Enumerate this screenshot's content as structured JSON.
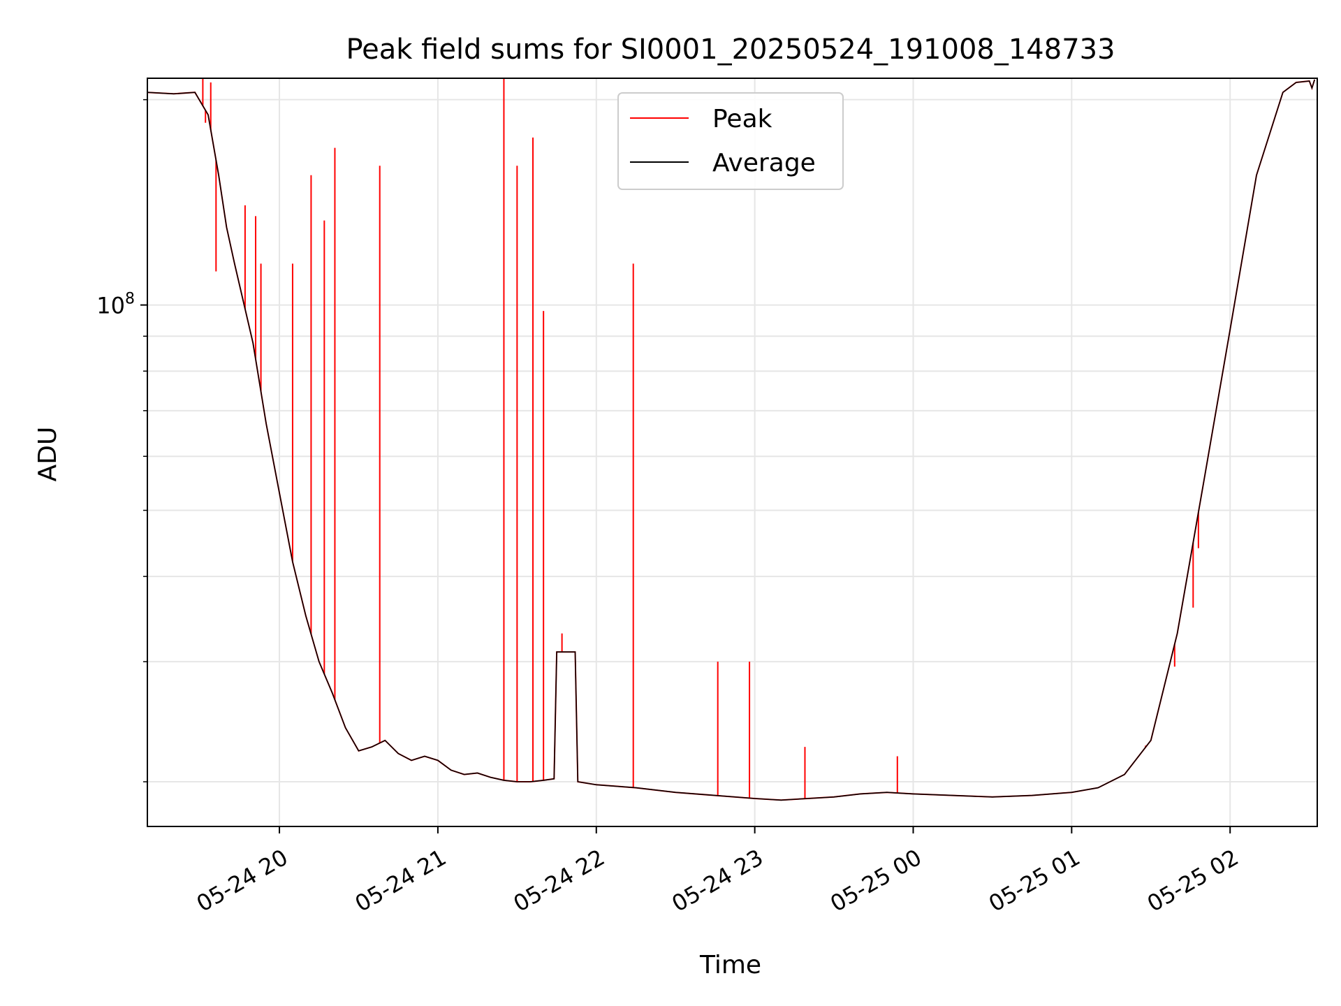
{
  "chart_data": {
    "type": "line",
    "title": "Peak field sums for SI0001_20250524_191008_148733",
    "xlabel": "Time",
    "ylabel": "ADU",
    "y_scale": "log",
    "ylim": [
      17200000,
      215000000
    ],
    "xlim": [
      "2025-05-24 19:10",
      "2025-05-25 02:33"
    ],
    "x_ticks": [
      {
        "t": "2025-05-24 20:00",
        "label": "05-24 20"
      },
      {
        "t": "2025-05-24 21:00",
        "label": "05-24 21"
      },
      {
        "t": "2025-05-24 22:00",
        "label": "05-24 22"
      },
      {
        "t": "2025-05-24 23:00",
        "label": "05-24 23"
      },
      {
        "t": "2025-05-25 00:00",
        "label": "05-25 00"
      },
      {
        "t": "2025-05-25 01:00",
        "label": "05-25 01"
      },
      {
        "t": "2025-05-25 02:00",
        "label": "05-25 02"
      }
    ],
    "y_ticks": [
      {
        "value": 100000000,
        "base": "10",
        "exp": "8"
      }
    ],
    "y_minor_ticks": [
      20000000,
      30000000,
      40000000,
      50000000,
      60000000,
      70000000,
      80000000,
      90000000,
      200000000
    ],
    "grid": true,
    "legend": {
      "position": "top-center",
      "entries": [
        "Peak",
        "Average"
      ]
    },
    "series": [
      {
        "name": "Average",
        "color": "#000000",
        "x": [
          "2025-05-24 19:10",
          "2025-05-24 19:20",
          "2025-05-24 19:28",
          "2025-05-24 19:33",
          "2025-05-24 19:37",
          "2025-05-24 19:40",
          "2025-05-24 19:43",
          "2025-05-24 19:50",
          "2025-05-24 19:55",
          "2025-05-24 20:00",
          "2025-05-24 20:05",
          "2025-05-24 20:10",
          "2025-05-24 20:15",
          "2025-05-24 20:20",
          "2025-05-24 20:25",
          "2025-05-24 20:30",
          "2025-05-24 20:35",
          "2025-05-24 20:40",
          "2025-05-24 20:45",
          "2025-05-24 20:50",
          "2025-05-24 20:55",
          "2025-05-24 21:00",
          "2025-05-24 21:05",
          "2025-05-24 21:10",
          "2025-05-24 21:15",
          "2025-05-24 21:20",
          "2025-05-24 21:25",
          "2025-05-24 21:30",
          "2025-05-24 21:35",
          "2025-05-24 21:40",
          "2025-05-24 21:44",
          "2025-05-24 21:45",
          "2025-05-24 21:52",
          "2025-05-24 21:53",
          "2025-05-24 22:00",
          "2025-05-24 22:15",
          "2025-05-24 22:30",
          "2025-05-24 22:45",
          "2025-05-24 23:00",
          "2025-05-24 23:10",
          "2025-05-24 23:20",
          "2025-05-24 23:30",
          "2025-05-24 23:40",
          "2025-05-24 23:50",
          "2025-05-25 00:00",
          "2025-05-25 00:15",
          "2025-05-25 00:30",
          "2025-05-25 00:45",
          "2025-05-25 01:00",
          "2025-05-25 01:10",
          "2025-05-25 01:20",
          "2025-05-25 01:30",
          "2025-05-25 01:40",
          "2025-05-25 01:50",
          "2025-05-25 02:00",
          "2025-05-25 02:10",
          "2025-05-25 02:20",
          "2025-05-25 02:25",
          "2025-05-25 02:30",
          "2025-05-25 02:31",
          "2025-05-25 02:32"
        ],
        "values": [
          205000000,
          204000000,
          205000000,
          190000000,
          155000000,
          130000000,
          115000000,
          88000000,
          67000000,
          53000000,
          42000000,
          35000000,
          30000000,
          27000000,
          24000000,
          22200000,
          22500000,
          23000000,
          22000000,
          21500000,
          21800000,
          21500000,
          20800000,
          20500000,
          20600000,
          20300000,
          20100000,
          20000000,
          20000000,
          20100000,
          20200000,
          31000000,
          31000000,
          20000000,
          19800000,
          19600000,
          19300000,
          19100000,
          18900000,
          18800000,
          18900000,
          19000000,
          19200000,
          19300000,
          19200000,
          19100000,
          19000000,
          19100000,
          19300000,
          19600000,
          20500000,
          23000000,
          33000000,
          55000000,
          92000000,
          155000000,
          205000000,
          212000000,
          213000000,
          208000000,
          214000000
        ]
      },
      {
        "name": "Peak",
        "color": "#ff0000",
        "spikes": [
          {
            "t": "2025-05-24 19:31",
            "value": 215000000
          },
          {
            "t": "2025-05-24 19:32",
            "value": 185000000
          },
          {
            "t": "2025-05-24 19:34",
            "value": 212000000
          },
          {
            "t": "2025-05-24 19:36",
            "value": 112000000
          },
          {
            "t": "2025-05-24 19:47",
            "value": 140000000
          },
          {
            "t": "2025-05-24 19:51",
            "value": 135000000
          },
          {
            "t": "2025-05-24 19:53",
            "value": 115000000
          },
          {
            "t": "2025-05-24 20:05",
            "value": 115000000
          },
          {
            "t": "2025-05-24 20:12",
            "value": 155000000
          },
          {
            "t": "2025-05-24 20:17",
            "value": 133000000
          },
          {
            "t": "2025-05-24 20:21",
            "value": 170000000
          },
          {
            "t": "2025-05-24 20:38",
            "value": 160000000
          },
          {
            "t": "2025-05-24 21:25",
            "value": 215000000
          },
          {
            "t": "2025-05-24 21:30",
            "value": 160000000
          },
          {
            "t": "2025-05-24 21:36",
            "value": 176000000
          },
          {
            "t": "2025-05-24 21:40",
            "value": 98000000
          },
          {
            "t": "2025-05-24 21:47",
            "value": 33000000
          },
          {
            "t": "2025-05-24 22:14",
            "value": 115000000
          },
          {
            "t": "2025-05-24 22:46",
            "value": 30000000
          },
          {
            "t": "2025-05-24 22:58",
            "value": 30000000
          },
          {
            "t": "2025-05-24 23:19",
            "value": 22500000
          },
          {
            "t": "2025-05-24 23:54",
            "value": 21800000
          },
          {
            "t": "2025-05-25 01:28",
            "value": 22600000
          },
          {
            "t": "2025-05-25 01:39",
            "value": 29500000
          },
          {
            "t": "2025-05-25 01:46",
            "value": 36000000
          },
          {
            "t": "2025-05-25 01:48",
            "value": 44000000
          }
        ]
      }
    ]
  }
}
